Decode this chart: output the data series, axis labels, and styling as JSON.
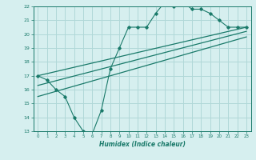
{
  "zigzag_x": [
    0,
    1,
    2,
    3,
    4,
    5,
    6,
    7,
    8,
    9,
    10,
    11,
    12,
    13,
    14,
    15,
    16,
    17,
    18,
    19,
    20,
    21,
    22,
    23
  ],
  "zigzag_y": [
    17.0,
    16.7,
    16.0,
    15.5,
    14.0,
    13.0,
    12.8,
    14.5,
    17.5,
    19.0,
    20.5,
    20.5,
    20.5,
    21.5,
    22.3,
    22.0,
    22.3,
    21.8,
    21.8,
    21.5,
    21.0,
    20.5,
    20.5,
    20.5
  ],
  "line1_x": [
    0,
    23
  ],
  "line1_y": [
    17.0,
    20.5
  ],
  "line2_x": [
    0,
    23
  ],
  "line2_y": [
    16.3,
    20.2
  ],
  "line3_x": [
    0,
    23
  ],
  "line3_y": [
    15.5,
    19.8
  ],
  "color": "#1a7a6a",
  "bg_color": "#d6efef",
  "grid_color": "#b0d8d8",
  "xlabel": "Humidex (Indice chaleur)",
  "xlim": [
    -0.5,
    23.5
  ],
  "ylim": [
    13,
    22
  ],
  "yticks": [
    13,
    14,
    15,
    16,
    17,
    18,
    19,
    20,
    21,
    22
  ],
  "xticks": [
    0,
    1,
    2,
    3,
    4,
    5,
    6,
    7,
    8,
    9,
    10,
    11,
    12,
    13,
    14,
    15,
    16,
    17,
    18,
    19,
    20,
    21,
    22,
    23
  ]
}
